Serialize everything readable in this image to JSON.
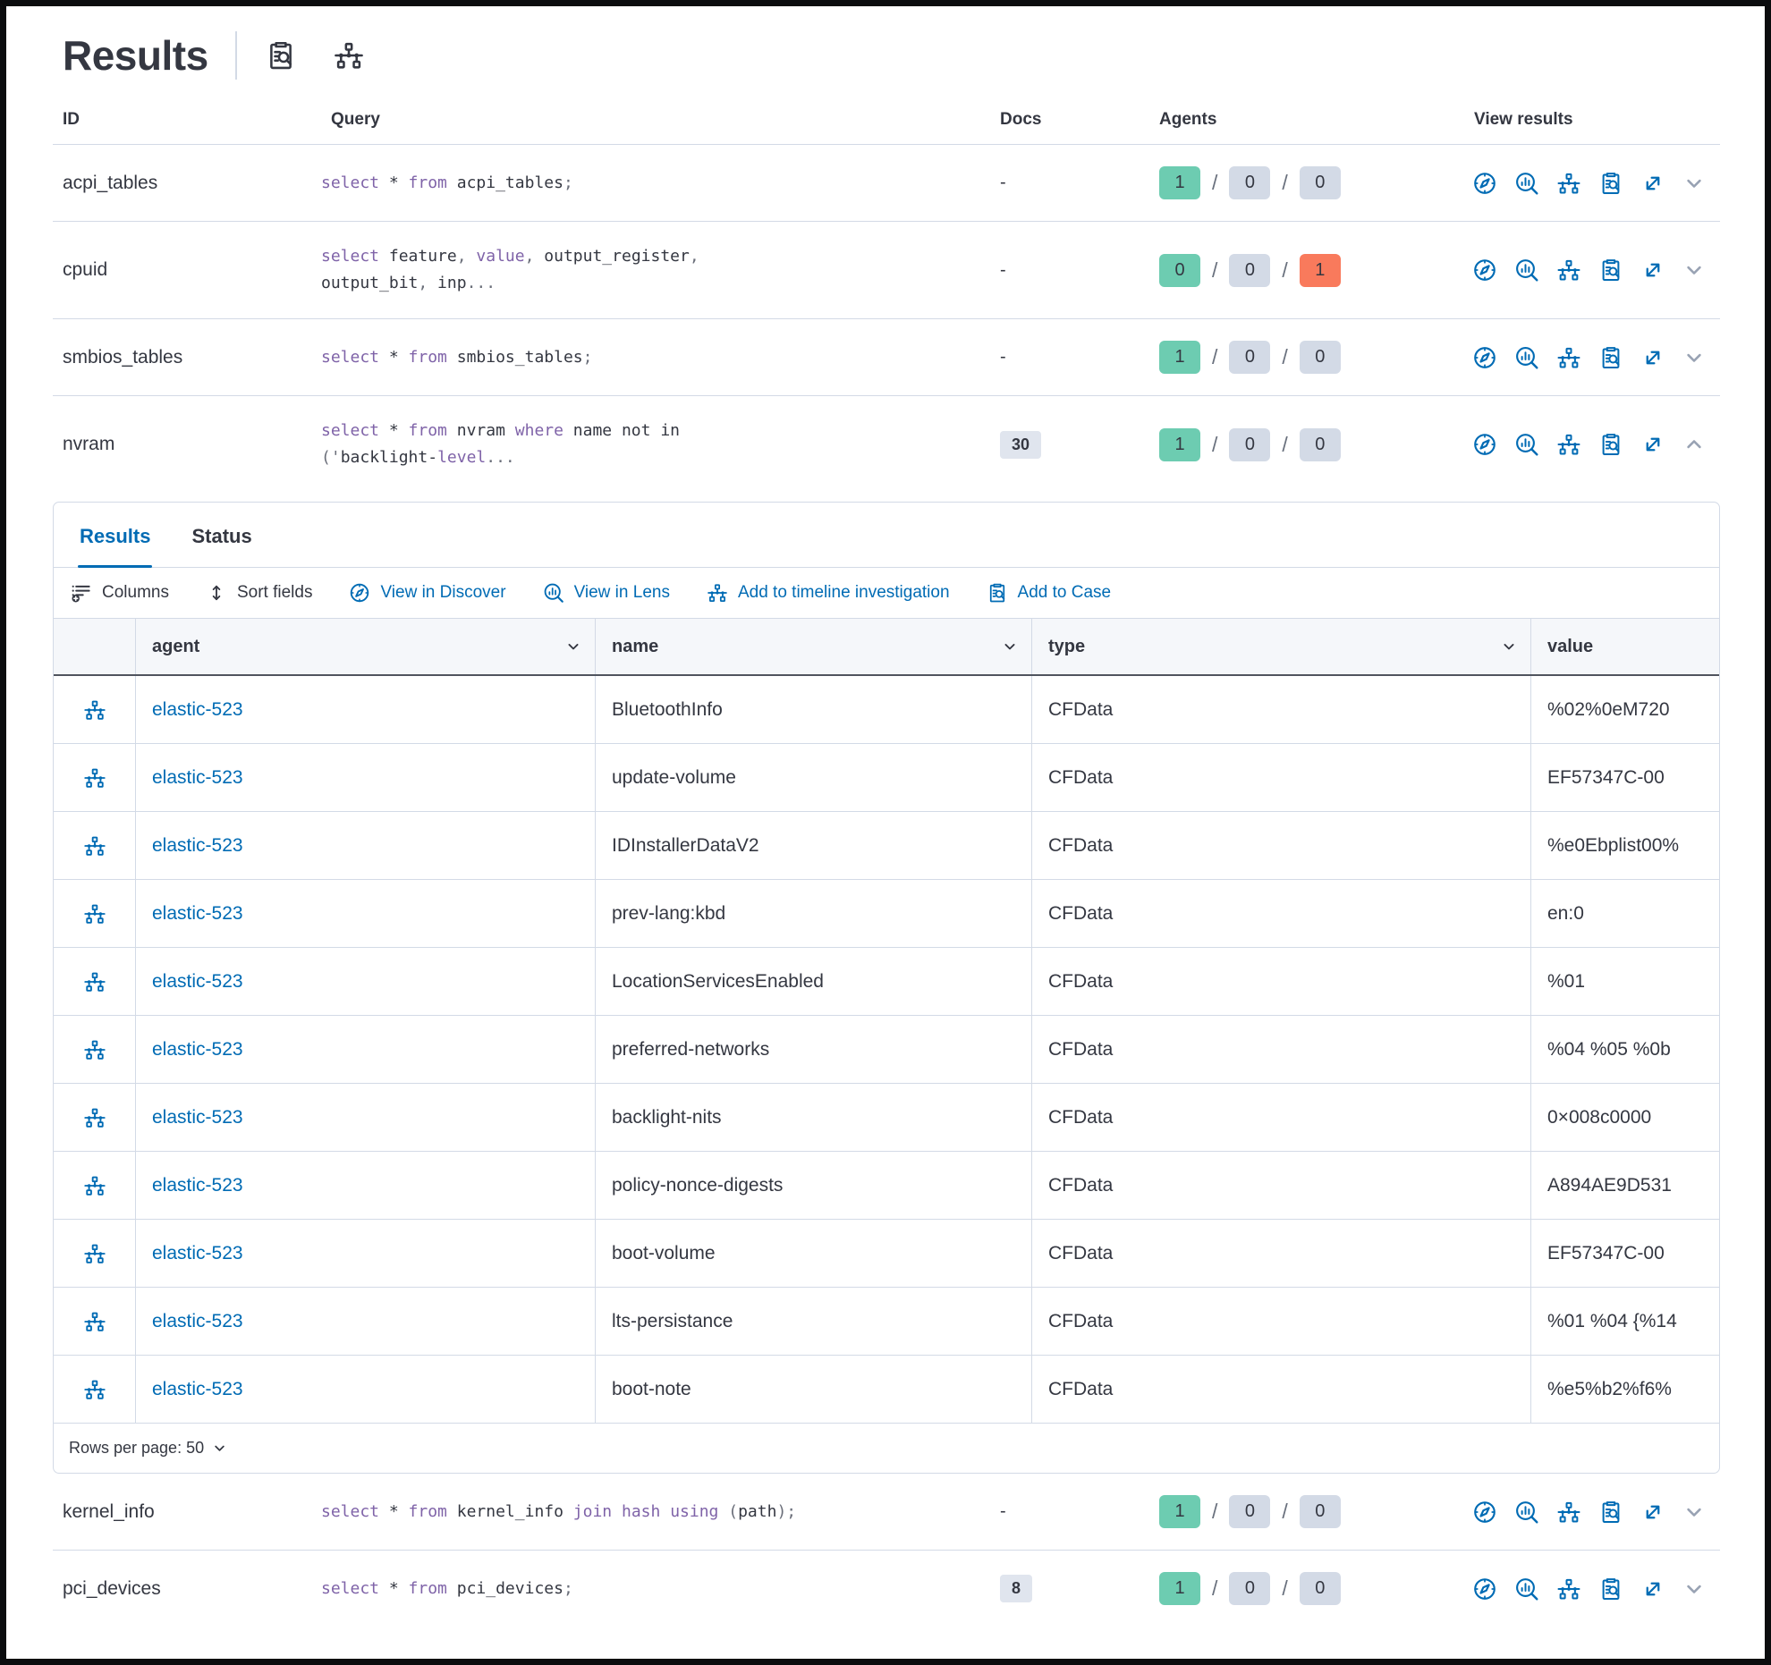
{
  "colors": {
    "accent_blue": "#006bb4",
    "keyword_purple": "#7F63A8",
    "badge_green": "#6DCCB1",
    "badge_gray": "#D3DAE6",
    "badge_red": "#F97A5C",
    "border_gray": "#D3DAE6"
  },
  "header": {
    "title": "Results",
    "icons": [
      "case-search-icon",
      "timeline-icon"
    ]
  },
  "table": {
    "columns": [
      "ID",
      "Query",
      "Docs",
      "Agents",
      "View results"
    ],
    "rows": [
      {
        "id": "acpi_tables",
        "docs": "-",
        "agents": [
          "1",
          "0",
          "0"
        ],
        "expanded": false,
        "query": [
          {
            "t": "select",
            "k": true
          },
          {
            "t": " * "
          },
          {
            "t": "from",
            "k": true
          },
          {
            "t": " acpi_tables"
          },
          {
            "t": ";",
            "p": true
          }
        ]
      },
      {
        "id": "cpuid",
        "docs": "-",
        "agents": [
          "0",
          "0",
          "1"
        ],
        "expanded": false,
        "query": [
          {
            "t": "select",
            "k": true
          },
          {
            "t": " feature"
          },
          {
            "t": ",",
            "p": true
          },
          {
            "t": " "
          },
          {
            "t": "value",
            "k": true
          },
          {
            "t": ",",
            "p": true
          },
          {
            "t": " output_register"
          },
          {
            "t": ",",
            "p": true
          },
          {
            "br": true
          },
          {
            "t": "output_bit"
          },
          {
            "t": ",",
            "p": true
          },
          {
            "t": " inp"
          },
          {
            "t": "...",
            "p": true
          }
        ]
      },
      {
        "id": "smbios_tables",
        "docs": "-",
        "agents": [
          "1",
          "0",
          "0"
        ],
        "expanded": false,
        "query": [
          {
            "t": "select",
            "k": true
          },
          {
            "t": " * "
          },
          {
            "t": "from",
            "k": true
          },
          {
            "t": " smbios_tables"
          },
          {
            "t": ";",
            "p": true
          }
        ]
      },
      {
        "id": "nvram",
        "docs_badge": "30",
        "agents": [
          "1",
          "0",
          "0"
        ],
        "expanded": true,
        "query": [
          {
            "t": "select",
            "k": true
          },
          {
            "t": " * "
          },
          {
            "t": "from",
            "k": true
          },
          {
            "t": " nvram "
          },
          {
            "t": "where",
            "k": true
          },
          {
            "t": " name not in"
          },
          {
            "br": true
          },
          {
            "t": "('",
            "p": true
          },
          {
            "t": "backlight-"
          },
          {
            "t": "level",
            "k": true
          },
          {
            "t": "...",
            "p": true
          }
        ]
      },
      {
        "id": "kernel_info",
        "docs": "-",
        "agents": [
          "1",
          "0",
          "0"
        ],
        "expanded": false,
        "query": [
          {
            "t": "select",
            "k": true
          },
          {
            "t": " * "
          },
          {
            "t": "from",
            "k": true
          },
          {
            "t": " kernel_info "
          },
          {
            "t": "join",
            "k": true
          },
          {
            "t": " "
          },
          {
            "t": "hash",
            "k": true
          },
          {
            "t": " "
          },
          {
            "t": "using",
            "k": true
          },
          {
            "t": " "
          },
          {
            "t": "(",
            "p": true
          },
          {
            "t": "path"
          },
          {
            "t": ");",
            "p": true
          }
        ]
      },
      {
        "id": "pci_devices",
        "docs_badge": "8",
        "agents": [
          "1",
          "0",
          "0"
        ],
        "expanded": false,
        "query": [
          {
            "t": "select",
            "k": true
          },
          {
            "t": " * "
          },
          {
            "t": "from",
            "k": true
          },
          {
            "t": " pci_devices"
          },
          {
            "t": ";",
            "p": true
          }
        ]
      }
    ]
  },
  "panel": {
    "tabs": [
      {
        "label": "Results",
        "active": true
      },
      {
        "label": "Status",
        "active": false
      }
    ],
    "toolbar": [
      {
        "label": "Columns"
      },
      {
        "label": "Sort fields"
      },
      {
        "label": "View in Discover"
      },
      {
        "label": "View in Lens"
      },
      {
        "label": "Add to timeline investigation"
      },
      {
        "label": "Add to Case"
      }
    ],
    "grid": {
      "columns": [
        "agent",
        "name",
        "type",
        "value"
      ],
      "rows": [
        {
          "agent": "elastic-523",
          "name": "BluetoothInfo",
          "type": "CFData",
          "value": "%02%0eM720"
        },
        {
          "agent": "elastic-523",
          "name": "update-volume",
          "type": "CFData",
          "value": "EF57347C-00"
        },
        {
          "agent": "elastic-523",
          "name": "IDInstallerDataV2",
          "type": "CFData",
          "value": "%e0Ebplist00%"
        },
        {
          "agent": "elastic-523",
          "name": "prev-lang:kbd",
          "type": "CFData",
          "value": "en:0"
        },
        {
          "agent": "elastic-523",
          "name": "LocationServicesEnabled",
          "type": "CFData",
          "value": "%01"
        },
        {
          "agent": "elastic-523",
          "name": "preferred-networks",
          "type": "CFData",
          "value": "%04 %05 %0b"
        },
        {
          "agent": "elastic-523",
          "name": "backlight-nits",
          "type": "CFData",
          "value": "0×008c0000"
        },
        {
          "agent": "elastic-523",
          "name": "policy-nonce-digests",
          "type": "CFData",
          "value": "A894AE9D531"
        },
        {
          "agent": "elastic-523",
          "name": "boot-volume",
          "type": "CFData",
          "value": "EF57347C-00"
        },
        {
          "agent": "elastic-523",
          "name": "lts-persistance",
          "type": "CFData",
          "value": "%01 %04 {%14"
        },
        {
          "agent": "elastic-523",
          "name": "boot-note",
          "type": "CFData",
          "value": "%e5%b2%f6%"
        }
      ],
      "footer": {
        "rows_per_page_label": "Rows per page: 50"
      }
    }
  }
}
